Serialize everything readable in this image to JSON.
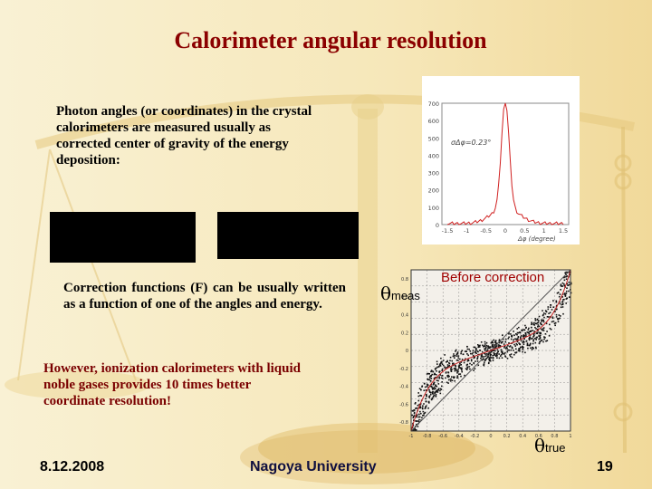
{
  "slide": {
    "title": "Calorimeter angular resolution",
    "intro_text": "Photon angles (or coordinates) in the crystal calorimeters are measured usually as corrected center of gravity of the energy deposition:",
    "correction_text": "Correction functions (F) can be usually written as a function of one of the angles and energy.",
    "ionization_text": "However, ionization calorimeters with liquid noble gases provides 10 times better coordinate resolution!",
    "theta_symbol": "θ",
    "theta_meas_sub": "meas",
    "theta_true_sub": "true",
    "before_correction": "Before correction",
    "footer_date": "8.12.2008",
    "footer_center": "Nagoya University",
    "page_number": "19"
  },
  "histogram": {
    "annotation": "σΔφ=0.23°",
    "xlabel": "Δφ (degree)",
    "y_ticks": [
      "700",
      "600",
      "500",
      "400",
      "300",
      "200",
      "100",
      "0"
    ],
    "x_ticks": [
      "-1.5",
      "-1",
      "-0.5",
      "0",
      "0.5",
      "1",
      "1.5"
    ]
  },
  "scatter": {
    "y_ticks": [
      "0.8",
      "0.6",
      "0.4",
      "0.2",
      "0",
      "-0.2",
      "-0.4",
      "-0.6",
      "-0.8"
    ],
    "x_ticks": [
      "-1",
      "-0.8",
      "-0.6",
      "-0.4",
      "-0.2",
      "0",
      "0.2",
      "0.4",
      "0.6",
      "0.8",
      "1"
    ]
  },
  "colors": {
    "title": "#8b0000",
    "ionization_text": "#7a0000",
    "before_correction": "#a00000",
    "histogram_line": "#d02020",
    "background": "#fbf3d9"
  }
}
